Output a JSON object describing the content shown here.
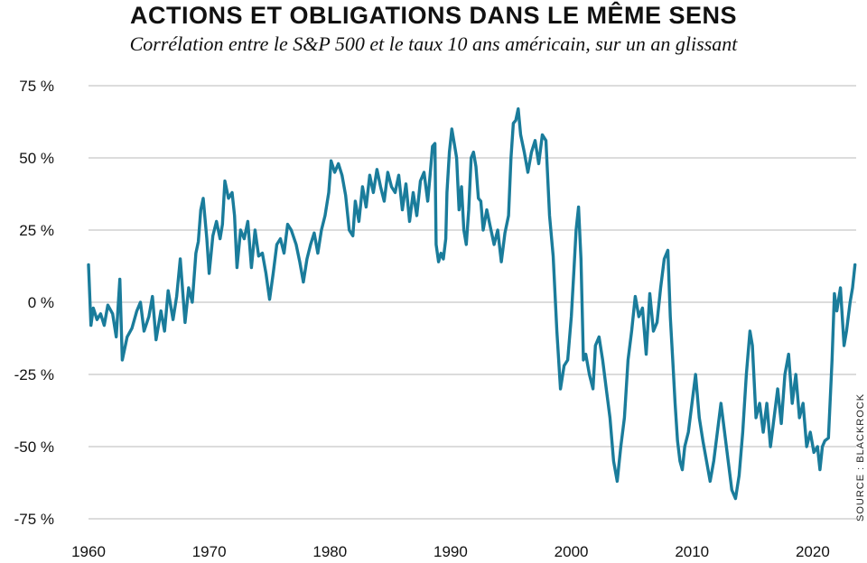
{
  "title": "ACTIONS ET OBLIGATIONS DANS LE MÊME SENS",
  "subtitle": "Corrélation entre le S&P 500 et le taux 10 ans américain, sur un an glissant",
  "source": "SOURCE : BLACKROCK",
  "colors": {
    "line": "#1a7c9b",
    "grid": "#c8c8c8",
    "text": "#111111"
  },
  "chart_data": {
    "type": "line",
    "title": "ACTIONS ET OBLIGATIONS DANS LE MÊME SENS",
    "subtitle": "Corrélation entre le S&P 500 et le taux 10 ans américain, sur un an glissant",
    "xlabel": "",
    "ylabel": "",
    "xlim": [
      1960,
      2023.6
    ],
    "ylim": [
      -75,
      75
    ],
    "grid": "horizontal",
    "legend": "none",
    "x_ticks": [
      1960,
      1970,
      1980,
      1990,
      2000,
      2010,
      2020
    ],
    "x_tick_labels": [
      "1960",
      "1970",
      "1980",
      "1990",
      "2000",
      "2010",
      "2020"
    ],
    "y_ticks": [
      75,
      50,
      25,
      0,
      -25,
      -50,
      -75
    ],
    "y_tick_labels": [
      "75 %",
      "50 %",
      "25 %",
      "0 %",
      "-25 %",
      "-50 %",
      "-75 %"
    ],
    "series": [
      {
        "values_unit": "%",
        "points": [
          [
            1960.0,
            13
          ],
          [
            1960.2,
            -8
          ],
          [
            1960.4,
            -2
          ],
          [
            1960.7,
            -6
          ],
          [
            1961.0,
            -4
          ],
          [
            1961.3,
            -8
          ],
          [
            1961.6,
            -1
          ],
          [
            1962.0,
            -4
          ],
          [
            1962.3,
            -12
          ],
          [
            1962.6,
            8
          ],
          [
            1962.8,
            -20
          ],
          [
            1963.2,
            -12
          ],
          [
            1963.6,
            -9
          ],
          [
            1964.0,
            -3
          ],
          [
            1964.3,
            0
          ],
          [
            1964.6,
            -10
          ],
          [
            1965.0,
            -5
          ],
          [
            1965.3,
            2
          ],
          [
            1965.6,
            -13
          ],
          [
            1966.0,
            -3
          ],
          [
            1966.3,
            -10
          ],
          [
            1966.6,
            4
          ],
          [
            1967.0,
            -6
          ],
          [
            1967.3,
            2
          ],
          [
            1967.6,
            15
          ],
          [
            1968.0,
            -7
          ],
          [
            1968.3,
            5
          ],
          [
            1968.6,
            0
          ],
          [
            1968.9,
            17
          ],
          [
            1969.1,
            21
          ],
          [
            1969.3,
            32
          ],
          [
            1969.5,
            36
          ],
          [
            1969.8,
            22
          ],
          [
            1970.0,
            10
          ],
          [
            1970.3,
            23
          ],
          [
            1970.6,
            28
          ],
          [
            1970.9,
            22
          ],
          [
            1971.1,
            27
          ],
          [
            1971.3,
            42
          ],
          [
            1971.6,
            36
          ],
          [
            1971.9,
            38
          ],
          [
            1972.1,
            30
          ],
          [
            1972.3,
            12
          ],
          [
            1972.6,
            25
          ],
          [
            1972.9,
            22
          ],
          [
            1973.2,
            28
          ],
          [
            1973.5,
            12
          ],
          [
            1973.8,
            25
          ],
          [
            1974.1,
            16
          ],
          [
            1974.4,
            17
          ],
          [
            1974.7,
            10
          ],
          [
            1975.0,
            1
          ],
          [
            1975.3,
            10
          ],
          [
            1975.6,
            20
          ],
          [
            1975.9,
            22
          ],
          [
            1976.2,
            17
          ],
          [
            1976.5,
            27
          ],
          [
            1976.8,
            25
          ],
          [
            1977.2,
            20
          ],
          [
            1977.5,
            14
          ],
          [
            1977.8,
            7
          ],
          [
            1978.1,
            15
          ],
          [
            1978.4,
            20
          ],
          [
            1978.7,
            24
          ],
          [
            1979.0,
            17
          ],
          [
            1979.3,
            25
          ],
          [
            1979.6,
            30
          ],
          [
            1979.9,
            38
          ],
          [
            1980.1,
            49
          ],
          [
            1980.4,
            45
          ],
          [
            1980.7,
            48
          ],
          [
            1981.0,
            44
          ],
          [
            1981.3,
            37
          ],
          [
            1981.6,
            25
          ],
          [
            1981.9,
            23
          ],
          [
            1982.1,
            35
          ],
          [
            1982.4,
            28
          ],
          [
            1982.7,
            40
          ],
          [
            1983.0,
            33
          ],
          [
            1983.3,
            44
          ],
          [
            1983.6,
            38
          ],
          [
            1983.9,
            46
          ],
          [
            1984.2,
            40
          ],
          [
            1984.5,
            35
          ],
          [
            1984.8,
            45
          ],
          [
            1985.1,
            40
          ],
          [
            1985.4,
            38
          ],
          [
            1985.7,
            44
          ],
          [
            1986.0,
            32
          ],
          [
            1986.3,
            41
          ],
          [
            1986.6,
            28
          ],
          [
            1986.9,
            38
          ],
          [
            1987.2,
            30
          ],
          [
            1987.5,
            42
          ],
          [
            1987.8,
            45
          ],
          [
            1988.1,
            35
          ],
          [
            1988.3,
            44
          ],
          [
            1988.5,
            54
          ],
          [
            1988.7,
            55
          ],
          [
            1988.8,
            20
          ],
          [
            1989.0,
            14
          ],
          [
            1989.2,
            17
          ],
          [
            1989.4,
            15
          ],
          [
            1989.6,
            22
          ],
          [
            1989.7,
            38
          ],
          [
            1989.9,
            52
          ],
          [
            1990.1,
            60
          ],
          [
            1990.3,
            55
          ],
          [
            1990.5,
            50
          ],
          [
            1990.7,
            32
          ],
          [
            1990.9,
            40
          ],
          [
            1991.1,
            25
          ],
          [
            1991.3,
            20
          ],
          [
            1991.5,
            32
          ],
          [
            1991.7,
            50
          ],
          [
            1991.9,
            52
          ],
          [
            1992.1,
            47
          ],
          [
            1992.3,
            36
          ],
          [
            1992.5,
            35
          ],
          [
            1992.7,
            25
          ],
          [
            1993.0,
            32
          ],
          [
            1993.3,
            26
          ],
          [
            1993.6,
            20
          ],
          [
            1993.9,
            25
          ],
          [
            1994.2,
            14
          ],
          [
            1994.5,
            24
          ],
          [
            1994.8,
            30
          ],
          [
            1995.0,
            50
          ],
          [
            1995.2,
            62
          ],
          [
            1995.4,
            63
          ],
          [
            1995.6,
            67
          ],
          [
            1995.8,
            58
          ],
          [
            1996.1,
            52
          ],
          [
            1996.4,
            45
          ],
          [
            1996.7,
            52
          ],
          [
            1997.0,
            56
          ],
          [
            1997.3,
            48
          ],
          [
            1997.6,
            58
          ],
          [
            1997.9,
            56
          ],
          [
            1998.2,
            30
          ],
          [
            1998.5,
            16
          ],
          [
            1998.8,
            -10
          ],
          [
            1999.1,
            -30
          ],
          [
            1999.4,
            -22
          ],
          [
            1999.7,
            -20
          ],
          [
            2000.0,
            -5
          ],
          [
            2000.2,
            10
          ],
          [
            2000.4,
            25
          ],
          [
            2000.6,
            33
          ],
          [
            2000.8,
            15
          ],
          [
            2001.0,
            -20
          ],
          [
            2001.2,
            -18
          ],
          [
            2001.5,
            -25
          ],
          [
            2001.8,
            -30
          ],
          [
            2002.0,
            -15
          ],
          [
            2002.3,
            -12
          ],
          [
            2002.6,
            -20
          ],
          [
            2002.9,
            -30
          ],
          [
            2003.2,
            -40
          ],
          [
            2003.5,
            -55
          ],
          [
            2003.8,
            -62
          ],
          [
            2004.1,
            -50
          ],
          [
            2004.4,
            -40
          ],
          [
            2004.7,
            -20
          ],
          [
            2005.0,
            -10
          ],
          [
            2005.3,
            2
          ],
          [
            2005.6,
            -5
          ],
          [
            2005.9,
            -2
          ],
          [
            2006.2,
            -18
          ],
          [
            2006.5,
            3
          ],
          [
            2006.8,
            -10
          ],
          [
            2007.1,
            -7
          ],
          [
            2007.4,
            5
          ],
          [
            2007.7,
            15
          ],
          [
            2008.0,
            18
          ],
          [
            2008.2,
            -5
          ],
          [
            2008.4,
            -20
          ],
          [
            2008.6,
            -35
          ],
          [
            2008.8,
            -48
          ],
          [
            2009.0,
            -55
          ],
          [
            2009.2,
            -58
          ],
          [
            2009.4,
            -50
          ],
          [
            2009.7,
            -45
          ],
          [
            2010.0,
            -35
          ],
          [
            2010.3,
            -25
          ],
          [
            2010.6,
            -40
          ],
          [
            2010.9,
            -48
          ],
          [
            2011.2,
            -55
          ],
          [
            2011.5,
            -62
          ],
          [
            2011.8,
            -55
          ],
          [
            2012.1,
            -45
          ],
          [
            2012.4,
            -35
          ],
          [
            2012.7,
            -45
          ],
          [
            2013.0,
            -55
          ],
          [
            2013.3,
            -65
          ],
          [
            2013.6,
            -68
          ],
          [
            2013.9,
            -60
          ],
          [
            2014.2,
            -45
          ],
          [
            2014.5,
            -25
          ],
          [
            2014.8,
            -10
          ],
          [
            2015.0,
            -15
          ],
          [
            2015.3,
            -40
          ],
          [
            2015.6,
            -35
          ],
          [
            2015.9,
            -45
          ],
          [
            2016.2,
            -35
          ],
          [
            2016.5,
            -50
          ],
          [
            2016.8,
            -40
          ],
          [
            2017.1,
            -30
          ],
          [
            2017.4,
            -42
          ],
          [
            2017.7,
            -25
          ],
          [
            2018.0,
            -18
          ],
          [
            2018.3,
            -35
          ],
          [
            2018.6,
            -25
          ],
          [
            2018.9,
            -40
          ],
          [
            2019.2,
            -35
          ],
          [
            2019.5,
            -50
          ],
          [
            2019.8,
            -45
          ],
          [
            2020.1,
            -52
          ],
          [
            2020.4,
            -50
          ],
          [
            2020.6,
            -58
          ],
          [
            2020.8,
            -50
          ],
          [
            2021.0,
            -48
          ],
          [
            2021.3,
            -47
          ],
          [
            2021.6,
            -20
          ],
          [
            2021.8,
            3
          ],
          [
            2022.0,
            -3
          ],
          [
            2022.3,
            5
          ],
          [
            2022.6,
            -15
          ],
          [
            2022.8,
            -10
          ],
          [
            2023.1,
            0
          ],
          [
            2023.3,
            5
          ],
          [
            2023.5,
            13
          ]
        ]
      }
    ]
  }
}
